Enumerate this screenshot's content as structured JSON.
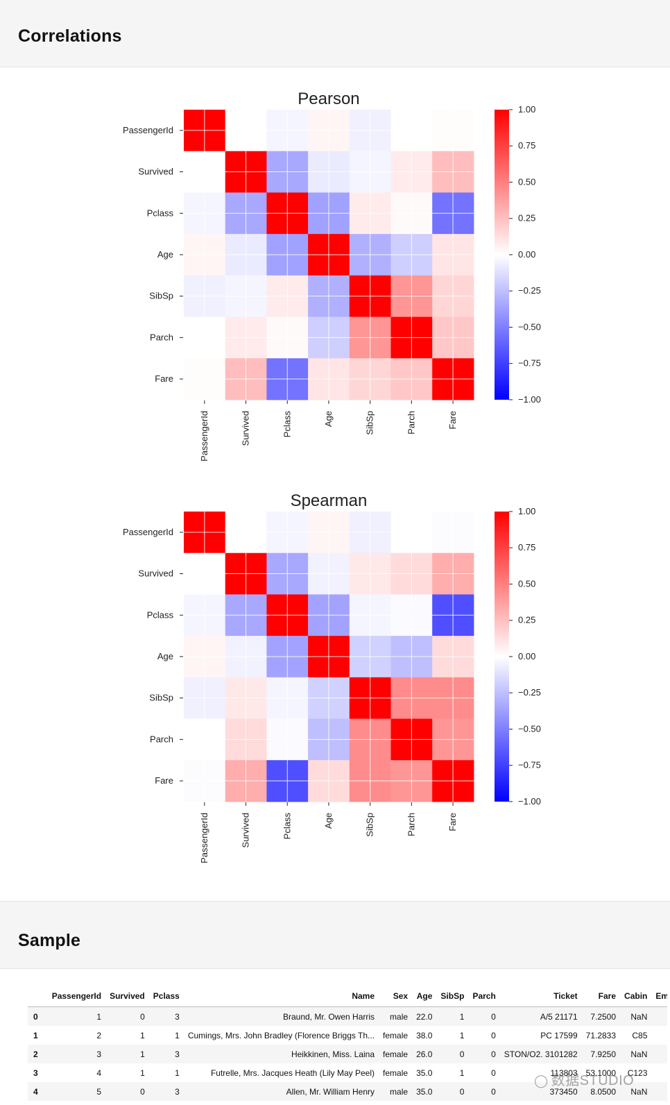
{
  "sections": {
    "correlations_title": "Correlations",
    "sample_title": "Sample"
  },
  "chart_data": [
    {
      "type": "heatmap",
      "title": "Pearson",
      "labels": [
        "PassengerId",
        "Survived",
        "Pclass",
        "Age",
        "SibSp",
        "Parch",
        "Fare"
      ],
      "matrix": [
        [
          1.0,
          0.0,
          -0.04,
          0.04,
          -0.06,
          0.0,
          0.01
        ],
        [
          0.0,
          1.0,
          -0.34,
          -0.08,
          -0.04,
          0.08,
          0.26
        ],
        [
          -0.04,
          -0.34,
          1.0,
          -0.37,
          0.08,
          0.02,
          -0.55
        ],
        [
          0.04,
          -0.08,
          -0.37,
          1.0,
          -0.31,
          -0.19,
          0.1
        ],
        [
          -0.06,
          -0.04,
          0.08,
          -0.31,
          1.0,
          0.41,
          0.16
        ],
        [
          0.0,
          0.08,
          0.02,
          -0.19,
          0.41,
          1.0,
          0.22
        ],
        [
          0.01,
          0.26,
          -0.55,
          0.1,
          0.16,
          0.22,
          1.0
        ]
      ],
      "colorbar_ticks": [
        "1.00",
        "0.75",
        "0.50",
        "0.25",
        "0.00",
        "−0.25",
        "−0.50",
        "−0.75",
        "−1.00"
      ],
      "vmin": -1,
      "vmax": 1,
      "colormap": "bwr"
    },
    {
      "type": "heatmap",
      "title": "Spearman",
      "labels": [
        "PassengerId",
        "Survived",
        "Pclass",
        "Age",
        "SibSp",
        "Parch",
        "Fare"
      ],
      "matrix": [
        [
          1.0,
          0.0,
          -0.04,
          0.04,
          -0.06,
          0.0,
          -0.01
        ],
        [
          0.0,
          1.0,
          -0.34,
          -0.05,
          0.09,
          0.14,
          0.32
        ],
        [
          -0.04,
          -0.34,
          1.0,
          -0.36,
          -0.04,
          -0.02,
          -0.69
        ],
        [
          0.04,
          -0.05,
          -0.36,
          1.0,
          -0.18,
          -0.25,
          0.14
        ],
        [
          -0.06,
          0.09,
          -0.04,
          -0.18,
          1.0,
          0.45,
          0.45
        ],
        [
          0.0,
          0.14,
          -0.02,
          -0.25,
          0.45,
          1.0,
          0.41
        ],
        [
          -0.01,
          0.32,
          -0.69,
          0.14,
          0.45,
          0.41,
          1.0
        ]
      ],
      "colorbar_ticks": [
        "1.00",
        "0.75",
        "0.50",
        "0.25",
        "0.00",
        "−0.25",
        "−0.50",
        "−0.75",
        "−1.00"
      ],
      "vmin": -1,
      "vmax": 1,
      "colormap": "bwr"
    }
  ],
  "sample": {
    "columns": [
      "",
      "PassengerId",
      "Survived",
      "Pclass",
      "Name",
      "Sex",
      "Age",
      "SibSp",
      "Parch",
      "Ticket",
      "Fare",
      "Cabin",
      "Emb"
    ],
    "rows": [
      [
        "0",
        "1",
        "0",
        "3",
        "Braund, Mr. Owen Harris",
        "male",
        "22.0",
        "1",
        "0",
        "A/5 21171",
        "7.2500",
        "NaN",
        ""
      ],
      [
        "1",
        "2",
        "1",
        "1",
        "Cumings, Mrs. John Bradley (Florence Briggs Th...",
        "female",
        "38.0",
        "1",
        "0",
        "PC 17599",
        "71.2833",
        "C85",
        ""
      ],
      [
        "2",
        "3",
        "1",
        "3",
        "Heikkinen, Miss. Laina",
        "female",
        "26.0",
        "0",
        "0",
        "STON/O2. 3101282",
        "7.9250",
        "NaN",
        ""
      ],
      [
        "3",
        "4",
        "1",
        "1",
        "Futrelle, Mrs. Jacques Heath (Lily May Peel)",
        "female",
        "35.0",
        "1",
        "0",
        "113803",
        "53.1000",
        "C123",
        ""
      ],
      [
        "4",
        "5",
        "0",
        "3",
        "Allen, Mr. William Henry",
        "male",
        "35.0",
        "0",
        "0",
        "373450",
        "8.0500",
        "NaN",
        ""
      ]
    ]
  },
  "watermark": "数据STUDIO"
}
